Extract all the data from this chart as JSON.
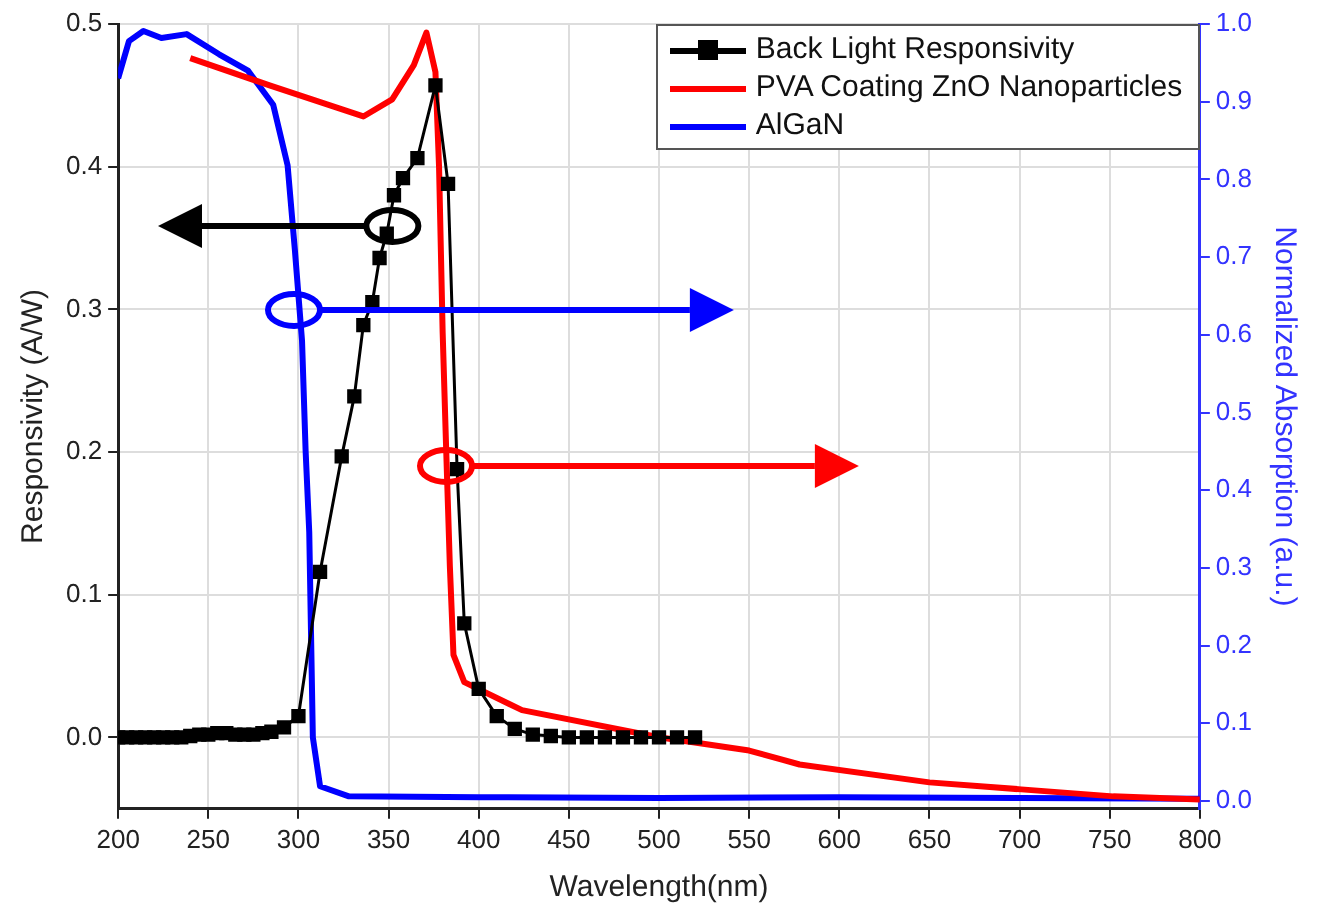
{
  "chart_data": {
    "type": "line",
    "xlabel": "Wavelength(nm)",
    "ylabel": "Responsivity (A/W)",
    "y2label": "Normalized Absorption (a.u.)",
    "xlim": [
      200,
      800
    ],
    "xticks": [
      200,
      250,
      300,
      350,
      400,
      450,
      500,
      550,
      600,
      650,
      700,
      750,
      800
    ],
    "ylim": [
      -0.05,
      0.5
    ],
    "yticks": [
      {
        "value": 0,
        "label": "0.0"
      },
      0.1,
      0.2,
      0.3,
      0.4,
      0.5
    ],
    "y2lim": [
      -0.01,
      1.0
    ],
    "y2ticks": [
      {
        "value": 0,
        "label": "0.0"
      },
      0.1,
      0.2,
      0.3,
      0.4,
      0.5,
      0.6,
      0.7,
      0.8,
      0.9,
      {
        "value": 1,
        "label": "1.0"
      }
    ],
    "grid": true,
    "legend": "top right",
    "line_style": "solid",
    "series": [
      {
        "name": "Back Light Responsivity",
        "color": "#000000",
        "marker": "square",
        "x": [
          200,
          205,
          210,
          215,
          220,
          225,
          230,
          235,
          240,
          245,
          250,
          255,
          260,
          265,
          270,
          275,
          280,
          285,
          292,
          300,
          312,
          324,
          331,
          336,
          341,
          345,
          349,
          353,
          358,
          366,
          376,
          383,
          388,
          392,
          400,
          410,
          420,
          430,
          440,
          450,
          460,
          470,
          480,
          490,
          500,
          510,
          520
        ],
        "values": [
          0,
          0,
          0,
          0,
          0,
          0,
          0,
          0,
          0.001,
          0.002,
          0.002,
          0.003,
          0.003,
          0.002,
          0.002,
          0.002,
          0.003,
          0.004,
          0.007,
          0.015,
          0.116,
          0.197,
          0.239,
          0.289,
          0.305,
          0.336,
          0.353,
          0.38,
          0.392,
          0.406,
          0.457,
          0.388,
          0.188,
          0.08,
          0.034,
          0.015,
          0.006,
          0.002,
          0.001,
          0,
          0,
          0,
          0,
          0,
          0,
          0,
          0
        ]
      },
      {
        "name": "PVA Coating ZnO Nanoparticles",
        "color": "#ff0000",
        "marker": "none",
        "axis": "y2",
        "x": [
          240,
          284,
          336,
          352,
          364,
          371,
          376,
          378,
          380,
          382,
          384,
          386,
          392,
          424,
          500,
          550,
          578,
          650,
          701,
          752,
          800
        ],
        "values": [
          0.956,
          0.921,
          0.881,
          0.903,
          0.947,
          0.989,
          0.938,
          0.816,
          0.603,
          0.449,
          0.302,
          0.188,
          0.153,
          0.117,
          0.082,
          0.065,
          0.047,
          0.024,
          0.015,
          0.006,
          0.002
        ]
      },
      {
        "name": "AlGaN",
        "color": "#0000ff",
        "marker": "none",
        "axis": "y2",
        "x": [
          200,
          206,
          214,
          224,
          238,
          256,
          272,
          286,
          294,
          298,
          302,
          304,
          306,
          308,
          312,
          328,
          400,
          500,
          600,
          700,
          800
        ],
        "values": [
          0.93,
          0.978,
          0.991,
          0.982,
          0.987,
          0.961,
          0.94,
          0.896,
          0.818,
          0.71,
          0.592,
          0.45,
          0.346,
          0.082,
          0.019,
          0.006,
          0.005,
          0.004,
          0.005,
          0.004,
          0.003
        ]
      }
    ]
  }
}
